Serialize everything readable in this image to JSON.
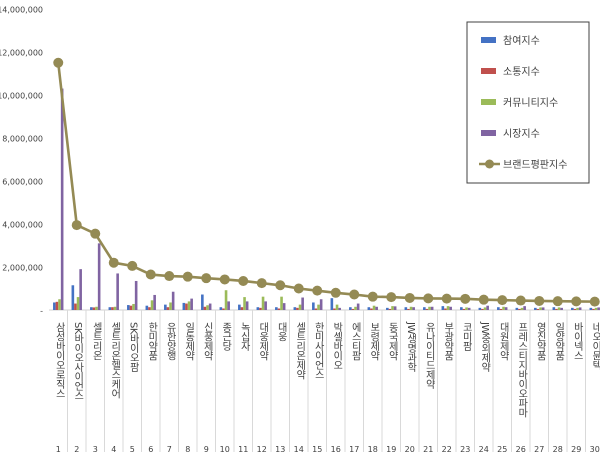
{
  "chart_data": {
    "type": "bar",
    "title": "",
    "xlabel": "",
    "ylabel": "",
    "ylim": [
      0,
      14000000
    ],
    "y_ticks": [
      "-",
      "2,000,000",
      "4,000,000",
      "6,000,000",
      "8,000,000",
      "10,000,000",
      "12,000,000",
      "14,000,000"
    ],
    "grid": false,
    "legend_position": "top-right",
    "categories": [
      "삼성바이오로직스",
      "SK바이오사이언스",
      "셀트리온",
      "셀트리온헬스케어",
      "SK바이오팜",
      "한미약품",
      "유한양행",
      "일동제약",
      "신풍제약",
      "종근당",
      "녹십자",
      "대웅제약",
      "대웅",
      "셀트리온제약",
      "한미사이언스",
      "박셀바이오",
      "에스티팜",
      "보령제약",
      "동국제약",
      "JW생명과학",
      "유나이티드제약",
      "부광약품",
      "코미팜",
      "JW중외제약",
      "대원제약",
      "프레스티지바이오파마",
      "영진약품",
      "일양약품",
      "바이넥스",
      "네오이뮨텍"
    ],
    "category_numbers": [
      "1",
      "2",
      "3",
      "4",
      "5",
      "6",
      "7",
      "8",
      "9",
      "10",
      "11",
      "12",
      "13",
      "14",
      "15",
      "16",
      "17",
      "18",
      "19",
      "20",
      "21",
      "22",
      "23",
      "24",
      "25",
      "26",
      "27",
      "28",
      "29",
      "30"
    ],
    "series": [
      {
        "name": "참여지수",
        "color": "#4472C4",
        "kind": "bar",
        "values": [
          350000,
          1150000,
          130000,
          130000,
          230000,
          200000,
          250000,
          330000,
          720000,
          130000,
          250000,
          130000,
          130000,
          130000,
          350000,
          550000,
          130000,
          130000,
          100000,
          130000,
          130000,
          180000,
          130000,
          100000,
          130000,
          100000,
          100000,
          130000,
          100000,
          100000
        ]
      },
      {
        "name": "소통지수",
        "color": "#C0504D",
        "kind": "bar",
        "values": [
          380000,
          300000,
          120000,
          130000,
          200000,
          130000,
          130000,
          300000,
          150000,
          70000,
          130000,
          100000,
          70000,
          100000,
          70000,
          70000,
          50000,
          70000,
          50000,
          50000,
          50000,
          70000,
          50000,
          50000,
          50000,
          50000,
          50000,
          50000,
          50000,
          50000
        ]
      },
      {
        "name": "커뮤니티지수",
        "color": "#9BBB59",
        "kind": "bar",
        "values": [
          500000,
          600000,
          150000,
          150000,
          280000,
          450000,
          350000,
          400000,
          220000,
          920000,
          600000,
          620000,
          620000,
          250000,
          250000,
          250000,
          150000,
          200000,
          180000,
          150000,
          150000,
          180000,
          120000,
          120000,
          150000,
          100000,
          120000,
          120000,
          100000,
          100000
        ]
      },
      {
        "name": "시장지수",
        "color": "#8064A2",
        "kind": "bar",
        "values": [
          10300000,
          1900000,
          3100000,
          1700000,
          1350000,
          700000,
          850000,
          530000,
          300000,
          400000,
          400000,
          400000,
          320000,
          580000,
          500000,
          100000,
          300000,
          150000,
          170000,
          130000,
          150000,
          150000,
          100000,
          200000,
          130000,
          180000,
          120000,
          100000,
          120000,
          120000
        ]
      },
      {
        "name": "브랜드평판지수",
        "color": "#948A54",
        "kind": "line",
        "values": [
          11500000,
          3950000,
          3550000,
          2200000,
          2050000,
          1650000,
          1580000,
          1550000,
          1480000,
          1420000,
          1350000,
          1250000,
          1150000,
          1000000,
          900000,
          800000,
          720000,
          620000,
          600000,
          560000,
          540000,
          530000,
          520000,
          480000,
          460000,
          440000,
          420000,
          410000,
          400000,
          390000
        ]
      }
    ]
  }
}
